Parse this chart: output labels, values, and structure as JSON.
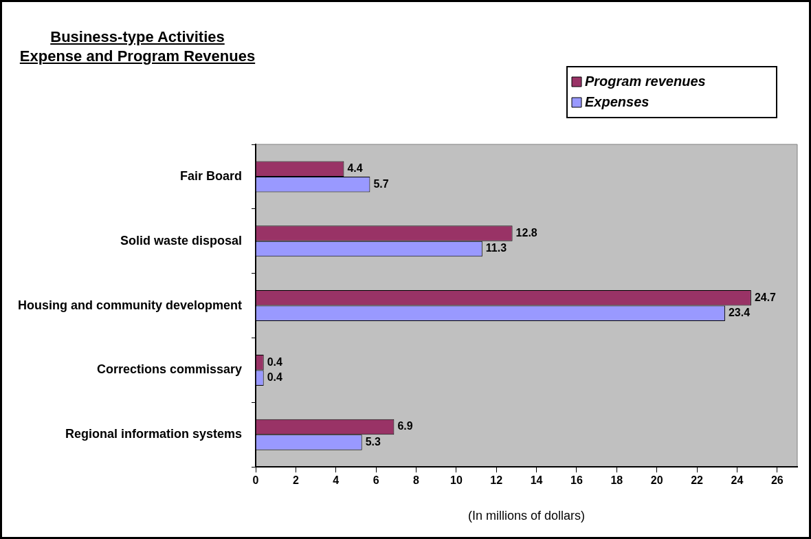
{
  "chart_data": {
    "type": "bar",
    "orientation": "horizontal",
    "title": "Business-type Activities \nExpense and Program Revenues",
    "xlabel": "(In millions of dollars)",
    "categories": [
      "Fair Board",
      "Solid waste disposal",
      "Housing and community development",
      "Corrections commissary",
      "Regional information systems"
    ],
    "series": [
      {
        "name": "Program revenues",
        "color": "#993366",
        "values": [
          4.4,
          12.8,
          24.7,
          0.4,
          6.9
        ]
      },
      {
        "name": "Expenses",
        "color": "#9999ff",
        "values": [
          5.7,
          11.3,
          23.4,
          0.4,
          5.3
        ]
      }
    ],
    "xlim": [
      0,
      27
    ],
    "xticks": [
      0,
      2,
      4,
      6,
      8,
      10,
      12,
      14,
      16,
      18,
      20,
      22,
      24,
      26
    ],
    "data_labels": true,
    "legend": "top right"
  }
}
